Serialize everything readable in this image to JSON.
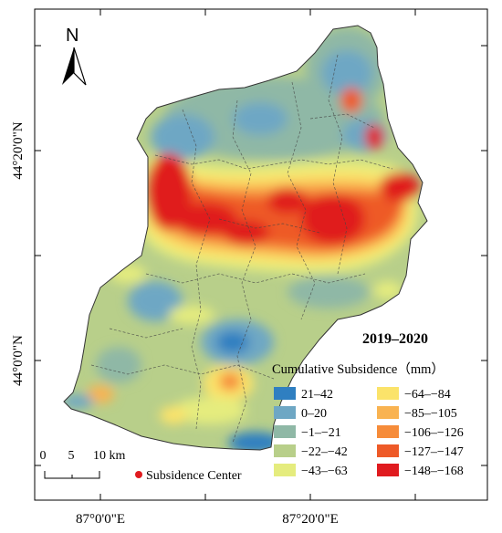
{
  "period_label": "2019–2020",
  "north_arrow": {
    "letter": "N",
    "icon": "north-arrow-icon"
  },
  "axes": {
    "left_ticks": [
      "44°20'0\"N",
      "44°0'0\"N"
    ],
    "bottom_ticks": [
      "87°0'0\"E",
      "87°20'0\"E"
    ]
  },
  "scale_bar": {
    "labels": [
      "0",
      "5",
      "10 km"
    ]
  },
  "legend": {
    "title": "Cumulative Subsidence（mm）",
    "items": [
      {
        "label": "21–42",
        "color": "#2f7fc1"
      },
      {
        "label": "0–20",
        "color": "#6ea7c4"
      },
      {
        "label": "−1–−21",
        "color": "#8fb8a6"
      },
      {
        "label": "−22–−42",
        "color": "#b8cf8a"
      },
      {
        "label": "−43–−63",
        "color": "#e5ec7e"
      },
      {
        "label": "−64–−84",
        "color": "#fbe36a"
      },
      {
        "label": "−85–−105",
        "color": "#f9b351"
      },
      {
        "label": "−106–−126",
        "color": "#f68c3a"
      },
      {
        "label": "−127–−147",
        "color": "#ee5a28"
      },
      {
        "label": "−148–−168",
        "color": "#e01b1f"
      }
    ],
    "subsidence_center": {
      "label": "Subsidence Center",
      "color": "#e01b1f"
    }
  }
}
